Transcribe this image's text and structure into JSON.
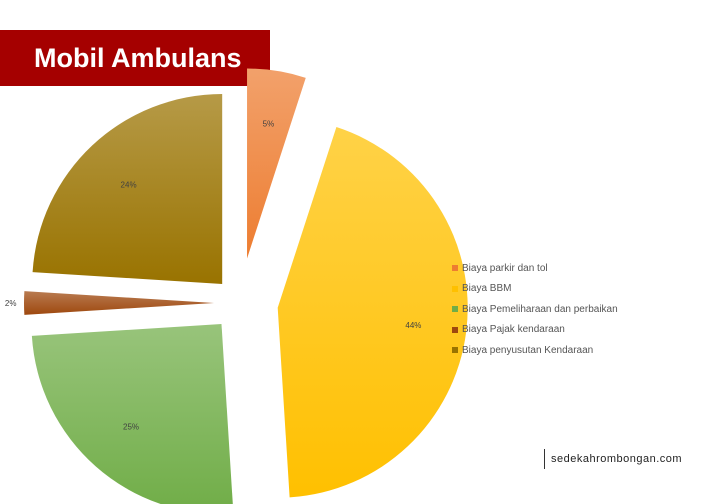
{
  "header": {
    "title": "Mobil Ambulans"
  },
  "footer": {
    "source": "sedekahrombongan.com"
  },
  "chart_data": {
    "type": "pie",
    "title": "",
    "exploded": true,
    "legend_position": "right",
    "slices": [
      {
        "label": "Biaya parkir dan tol",
        "value": 5,
        "data_label": "5%",
        "color": "#ed7d31"
      },
      {
        "label": "Biaya BBM",
        "value": 44,
        "data_label": "44%",
        "color": "#ffc000"
      },
      {
        "label": "Biaya Pemeliharaan dan perbaikan",
        "value": 25,
        "data_label": "25%",
        "color": "#70ad47"
      },
      {
        "label": "Biaya Pajak kendaraan",
        "value": 2,
        "data_label": "2%",
        "color": "#9e480e"
      },
      {
        "label": "Biaya penyusutan Kendaraan",
        "value": 24,
        "data_label": "24%",
        "color": "#997300"
      }
    ]
  }
}
